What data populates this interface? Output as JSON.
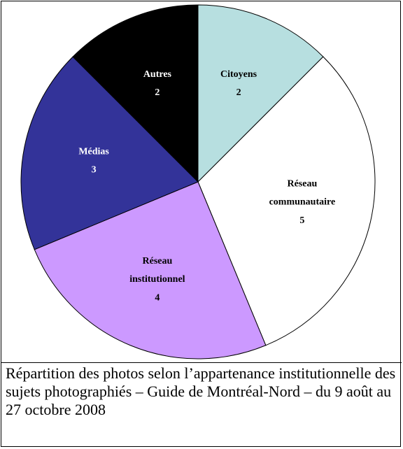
{
  "chart_data": {
    "type": "pie",
    "caption": "Répartition des photos selon l’appartenance institutionnelle des sujets photographiés – Guide de Montréal-Nord – du 9 août au 27 octobre 2008",
    "categories": [
      "Citoyens",
      "Réseau communautaire",
      "Réseau institutionnel",
      "Médias",
      "Autres"
    ],
    "values": [
      2,
      5,
      4,
      3,
      2
    ],
    "colors": [
      "#b7dfe0",
      "#ffffff",
      "#cc99ff",
      "#333399",
      "#000000"
    ],
    "label_colors": [
      "#000000",
      "#000000",
      "#000000",
      "#ffffff",
      "#ffffff"
    ]
  }
}
